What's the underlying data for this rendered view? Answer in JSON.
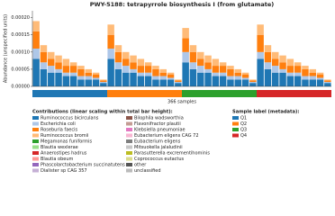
{
  "chart_data": {
    "type": "bar",
    "stacked": true,
    "title": "PWY-5188: tetrapyrrole biosynthesis I (from glutamate)",
    "y_label": "Abundance (unspecified units)",
    "x_label": "366 samples",
    "ylim": [
      0,
      0.00022
    ],
    "yticks": [
      {
        "value": 0,
        "label": "0.00000"
      },
      {
        "value": 5e-05,
        "label": "0.00005"
      },
      {
        "value": 0.0001,
        "label": "0.00010"
      },
      {
        "value": 0.00015,
        "label": "0.00015"
      },
      {
        "value": 0.0002,
        "label": "0.00020"
      }
    ],
    "grid": false,
    "series": [
      {
        "name": "Ruminococcus bicirculans",
        "color": "#1f77b4",
        "values": [
          8e-05,
          5e-05,
          4e-05,
          4e-05,
          3e-05,
          3e-05,
          2e-05,
          2e-05,
          2e-05,
          1e-05,
          8e-05,
          5e-05,
          4e-05,
          4e-05,
          3e-05,
          3e-05,
          2e-05,
          2e-05,
          2e-05,
          1e-05,
          7e-05,
          5e-05,
          4e-05,
          4e-05,
          3e-05,
          3e-05,
          2e-05,
          2e-05,
          2e-05,
          1e-05,
          8e-05,
          5e-05,
          4e-05,
          4e-05,
          3e-05,
          3e-05,
          2e-05,
          2e-05,
          2e-05,
          1e-05
        ]
      },
      {
        "name": "Escherichia coli",
        "color": "#aec7e8",
        "values": [
          3e-05,
          2e-05,
          2e-05,
          1e-05,
          1e-05,
          1e-05,
          1e-05,
          1e-05,
          5e-06,
          3e-06,
          3e-05,
          2e-05,
          2e-05,
          1e-05,
          1e-05,
          1e-05,
          1e-05,
          1e-05,
          5e-06,
          3e-06,
          3e-05,
          2e-05,
          2e-05,
          1e-05,
          1e-05,
          1e-05,
          1e-05,
          1e-05,
          5e-06,
          3e-06,
          2e-05,
          2e-05,
          2e-05,
          1e-05,
          1e-05,
          1e-05,
          1e-05,
          1e-05,
          5e-06,
          3e-06
        ]
      },
      {
        "name": "Roseburia faecis",
        "color": "#ff7f0e",
        "values": [
          5e-05,
          3e-05,
          2e-05,
          2e-05,
          2e-05,
          2e-05,
          2e-05,
          1e-05,
          1e-05,
          4e-06,
          4e-05,
          3e-05,
          2e-05,
          2e-05,
          2e-05,
          2e-05,
          2e-05,
          1e-05,
          1e-05,
          4e-06,
          4e-05,
          3e-05,
          2e-05,
          2e-05,
          2e-05,
          2e-05,
          2e-05,
          1e-05,
          1e-05,
          4e-06,
          5e-05,
          3e-05,
          2e-05,
          2e-05,
          2e-05,
          2e-05,
          2e-05,
          1e-05,
          1e-05,
          4e-06
        ]
      },
      {
        "name": "Ruminococcus bromii",
        "color": "#ffbb78",
        "values": [
          3e-05,
          2e-05,
          2e-05,
          2e-05,
          2e-05,
          1e-05,
          1e-05,
          1e-05,
          5e-06,
          3e-06,
          3e-05,
          2e-05,
          2e-05,
          2e-05,
          2e-05,
          1e-05,
          1e-05,
          1e-05,
          5e-06,
          3e-06,
          3e-05,
          2e-05,
          2e-05,
          2e-05,
          2e-05,
          1e-05,
          1e-05,
          1e-05,
          5e-06,
          3e-06,
          3e-05,
          2e-05,
          2e-05,
          2e-05,
          2e-05,
          1e-05,
          1e-05,
          1e-05,
          5e-06,
          3e-06
        ]
      }
    ],
    "legend_title": "Contributions (linear scaling within total bar height):",
    "legend_extra": [
      {
        "name": "Megamonas funiformis",
        "color": "#2ca02c"
      },
      {
        "name": "Blautia wexlerae",
        "color": "#98df8a"
      },
      {
        "name": "Anaerostipes hadrus",
        "color": "#d62728"
      },
      {
        "name": "Blautia obeum",
        "color": "#ff9896"
      },
      {
        "name": "Phascolarctobacterium succinatutens",
        "color": "#9467bd"
      },
      {
        "name": "Dialister sp CAG 357",
        "color": "#c5b0d5"
      },
      {
        "name": "Bilophila wadsworthia",
        "color": "#8c564b"
      },
      {
        "name": "Flavonifractor plautii",
        "color": "#c49c94"
      },
      {
        "name": "Klebsiella pneumoniae",
        "color": "#e377c2"
      },
      {
        "name": "Eubacterium eligens CAG 72",
        "color": "#f7b6d2"
      },
      {
        "name": "Eubacterium eligens",
        "color": "#7f7f7f"
      },
      {
        "name": "Mitsuokella jalaludinii",
        "color": "#c7c7c7"
      },
      {
        "name": "Parasutterella excrementihominis",
        "color": "#bcbd22"
      },
      {
        "name": "Coprococcus eutactus",
        "color": "#dbdb8d"
      },
      {
        "name": "other",
        "color": "#555555"
      },
      {
        "name": "unclassified",
        "color": "#bbbbbb"
      }
    ],
    "groups_title": "Sample label (metadata):",
    "groups": [
      {
        "name": "Q1",
        "color": "#1f77b4"
      },
      {
        "name": "Q2",
        "color": "#ff7f0e"
      },
      {
        "name": "Q3",
        "color": "#2ca02c"
      },
      {
        "name": "Q4",
        "color": "#d62728"
      }
    ]
  }
}
